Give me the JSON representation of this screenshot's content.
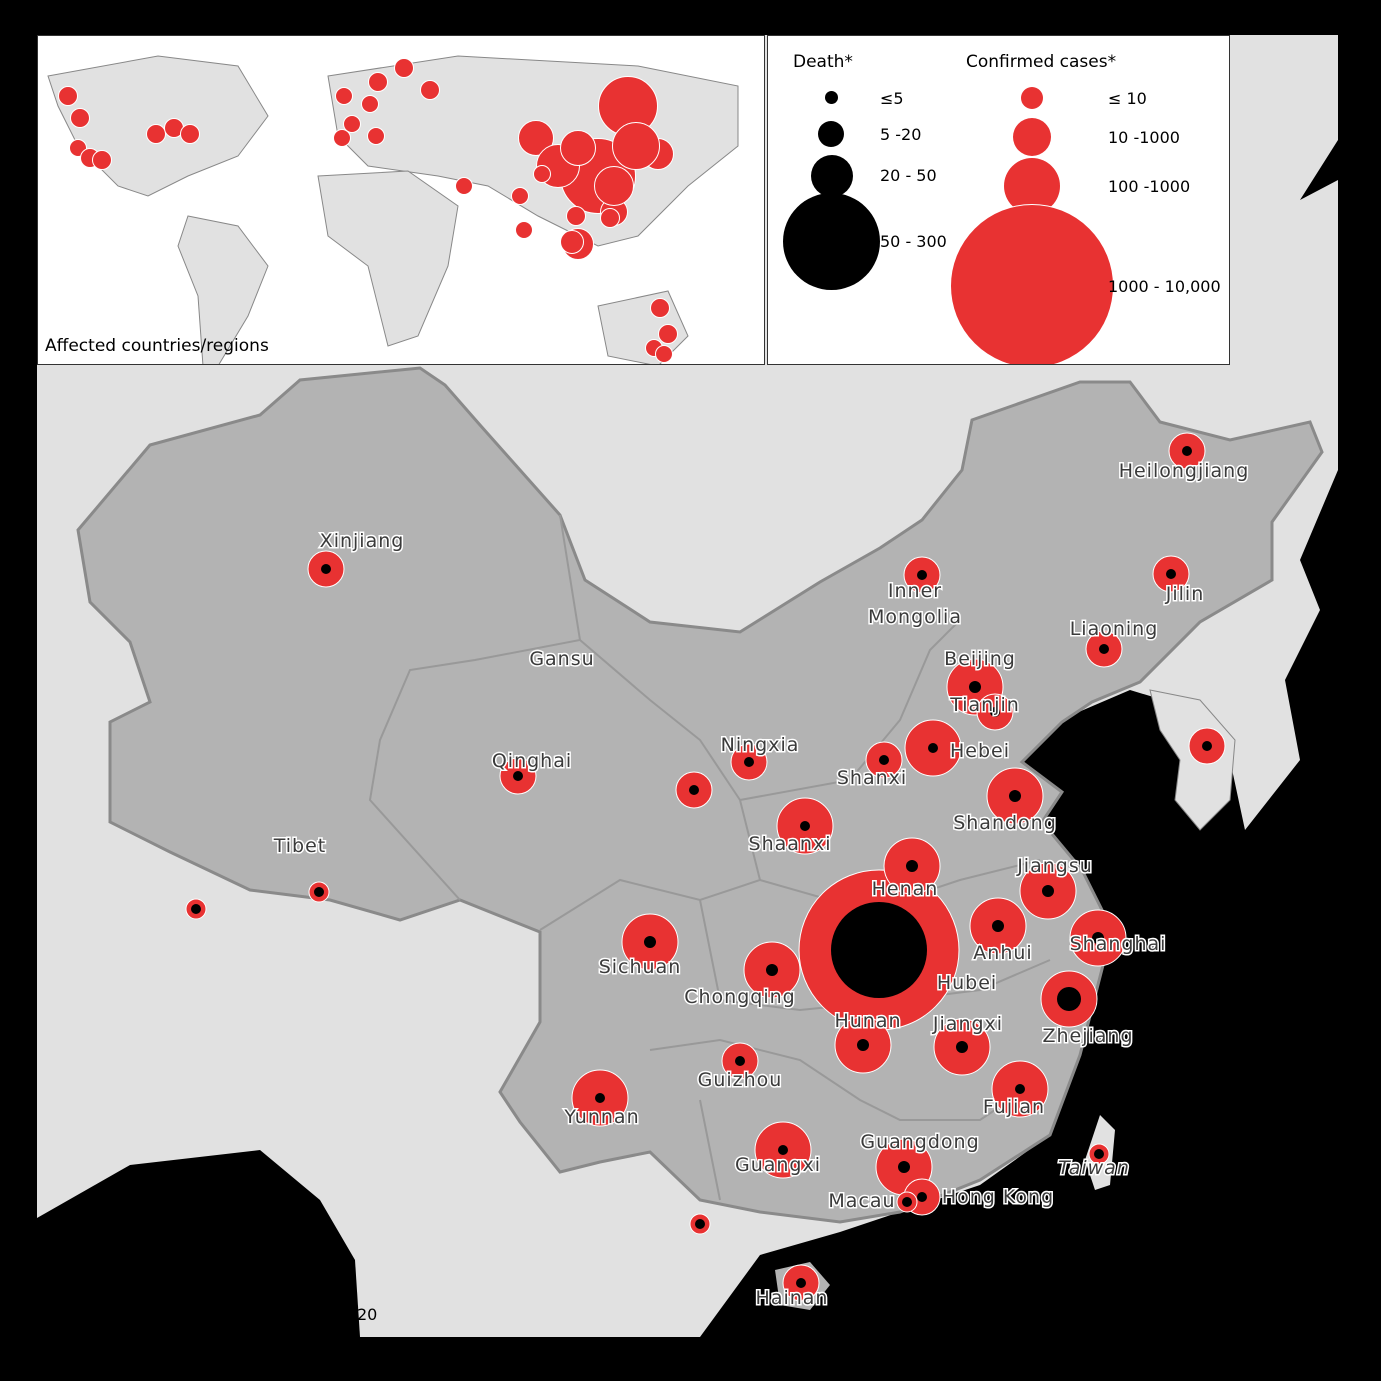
{
  "colors": {
    "case": "#e83232",
    "death": "#000000",
    "china": "#b3b3b3",
    "land": "#e1e1e1",
    "sea": "#000000"
  },
  "inset": {
    "caption": "Affected countries/regions"
  },
  "legend": {
    "death_title": "Death",
    "cases_title": "Confirmed cases",
    "asterisk": "*",
    "death_classes": [
      "≤5",
      "5 -20",
      "20 - 50",
      "50 - 300"
    ],
    "case_classes": [
      "≤ 10",
      "10 -1000",
      "100 -1000",
      "1000 - 10,000"
    ]
  },
  "fragment_text": "20",
  "regions": [
    {
      "name": "Xinjiang",
      "cases_class": 1,
      "death_class": 0
    },
    {
      "name": "Gansu",
      "cases_class": 1,
      "death_class": 0
    },
    {
      "name": "Qinghai",
      "cases_class": 1,
      "death_class": 0
    },
    {
      "name": "Tibet",
      "cases_class": 0,
      "death_class": 0
    },
    {
      "name": "Ningxia",
      "cases_class": 1,
      "death_class": 0
    },
    {
      "name": "Shaanxi",
      "cases_class": 2,
      "death_class": 0
    },
    {
      "name": "Shanxi",
      "cases_class": 1,
      "death_class": 0
    },
    {
      "name": "Hebei",
      "cases_class": 2,
      "death_class": 0
    },
    {
      "name": "Beijing",
      "cases_class": 2,
      "death_class": 1
    },
    {
      "name": "Tianjin",
      "cases_class": 1,
      "death_class": 0
    },
    {
      "name": "Inner Mongolia",
      "cases_class": 1,
      "death_class": 0
    },
    {
      "name": "Heilongjiang",
      "cases_class": 1,
      "death_class": 0
    },
    {
      "name": "Jilin",
      "cases_class": 1,
      "death_class": 0
    },
    {
      "name": "Liaoning",
      "cases_class": 1,
      "death_class": 0
    },
    {
      "name": "Shandong",
      "cases_class": 2,
      "death_class": 1
    },
    {
      "name": "Jiangsu",
      "cases_class": 2,
      "death_class": 1
    },
    {
      "name": "Henan",
      "cases_class": 2,
      "death_class": 1
    },
    {
      "name": "Hubei",
      "cases_class": 3,
      "death_class": 3
    },
    {
      "name": "Anhui",
      "cases_class": 2,
      "death_class": 1
    },
    {
      "name": "Shanghai",
      "cases_class": 2,
      "death_class": 1
    },
    {
      "name": "Zhejiang",
      "cases_class": 2,
      "death_class": 2
    },
    {
      "name": "Jiangxi",
      "cases_class": 2,
      "death_class": 1
    },
    {
      "name": "Hunan",
      "cases_class": 2,
      "death_class": 1
    },
    {
      "name": "Sichuan",
      "cases_class": 2,
      "death_class": 1
    },
    {
      "name": "Chongqing",
      "cases_class": 2,
      "death_class": 1
    },
    {
      "name": "Guizhou",
      "cases_class": 1,
      "death_class": 0
    },
    {
      "name": "Yunnan",
      "cases_class": 2,
      "death_class": 0
    },
    {
      "name": "Guangxi",
      "cases_class": 2,
      "death_class": 0
    },
    {
      "name": "Guangdong",
      "cases_class": 2,
      "death_class": 1
    },
    {
      "name": "Fujian",
      "cases_class": 2,
      "death_class": 0
    },
    {
      "name": "Hong Kong",
      "cases_class": 1,
      "death_class": 0
    },
    {
      "name": "Macau",
      "cases_class": 0,
      "death_class": 0
    },
    {
      "name": "Taiwan",
      "cases_class": 0,
      "death_class": 0
    },
    {
      "name": "Hainan",
      "cases_class": 1,
      "death_class": 0
    }
  ],
  "unlabeled_markers": [
    {
      "cases_class": 0,
      "death_class": 0
    },
    {
      "cases_class": 1,
      "death_class": 0
    },
    {
      "cases_class": 0,
      "death_class": 0
    }
  ]
}
